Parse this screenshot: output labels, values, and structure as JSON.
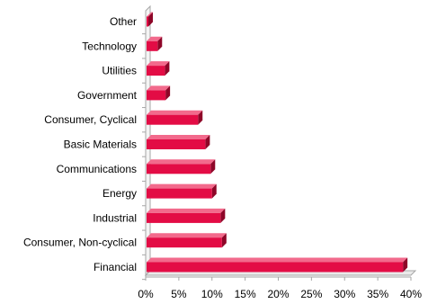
{
  "chart_data": {
    "type": "bar",
    "orientation": "horizontal",
    "categories": [
      "Financial",
      "Consumer, Non-cyclical",
      "Industrial",
      "Energy",
      "Communications",
      "Basic Materials",
      "Consumer, Cyclical",
      "Government",
      "Utilities",
      "Technology",
      "Other"
    ],
    "values": [
      38.8,
      11.5,
      11.3,
      10.0,
      9.8,
      9.0,
      7.9,
      3.0,
      2.9,
      1.8,
      0.3
    ],
    "value_unit": "%",
    "xlim": [
      0,
      40
    ],
    "x_ticks": [
      "0%",
      "5%",
      "10%",
      "15%",
      "20%",
      "25%",
      "30%",
      "35%",
      "40%"
    ],
    "title": "",
    "xlabel": "",
    "ylabel": "",
    "grid": false,
    "legend": "none",
    "style": "3d",
    "colors": {
      "bar_front": "#e30c45",
      "bar_top": "#f26a8c",
      "bar_side": "#8e0628",
      "axis": "#a6a6a6",
      "floor": "#cfcfcf"
    }
  }
}
